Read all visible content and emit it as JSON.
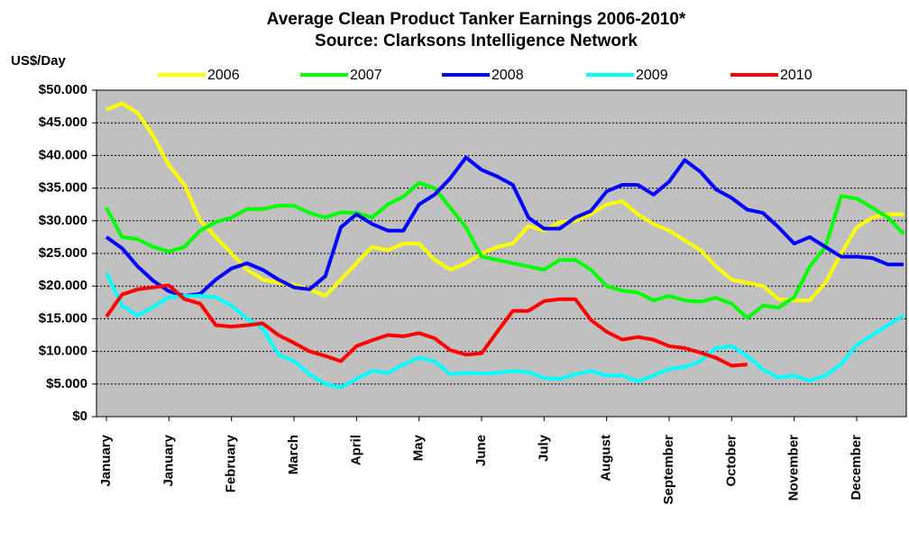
{
  "chart_data": {
    "type": "line",
    "title": "Average Clean Product Tanker Earnings 2006-2010*",
    "subtitle": "Source: Clarksons Intelligence Network",
    "ylabel": "US$/Day",
    "categories": [
      "January",
      null,
      null,
      null,
      "January",
      null,
      null,
      null,
      "February",
      null,
      null,
      null,
      "March",
      null,
      null,
      null,
      "April",
      null,
      null,
      null,
      "May",
      null,
      null,
      null,
      "June",
      null,
      null,
      null,
      "July",
      null,
      null,
      null,
      "August",
      null,
      null,
      null,
      "September",
      null,
      null,
      null,
      "October",
      null,
      null,
      null,
      "November",
      null,
      null,
      null,
      "December",
      null,
      null,
      null
    ],
    "ylim": [
      0,
      50000
    ],
    "yticks": [
      {
        "value": 0,
        "label": "$0"
      },
      {
        "value": 5000,
        "label": "$5.000"
      },
      {
        "value": 10000,
        "label": "$10.000"
      },
      {
        "value": 15000,
        "label": "$15.000"
      },
      {
        "value": 20000,
        "label": "$20.000"
      },
      {
        "value": 25000,
        "label": "$25.000"
      },
      {
        "value": 30000,
        "label": "$30.000"
      },
      {
        "value": 35000,
        "label": "$35.000"
      },
      {
        "value": 40000,
        "label": "$40.000"
      },
      {
        "value": 45000,
        "label": "$45.000"
      },
      {
        "value": 50000,
        "label": "$50.000"
      }
    ],
    "grid": true,
    "legend": "top",
    "series": [
      {
        "name": "2006",
        "color": "#ffff00",
        "values": [
          47000,
          48000,
          46500,
          43000,
          38500,
          35500,
          30000,
          27500,
          25000,
          22500,
          21000,
          20500,
          20200,
          19500,
          18500,
          21000,
          23500,
          26000,
          25500,
          26500,
          26500,
          24000,
          22500,
          23500,
          25000,
          26000,
          26500,
          29200,
          28500,
          29800,
          30000,
          31000,
          32500,
          33000,
          31000,
          29500,
          28500,
          27000,
          25500,
          23000,
          21000,
          20500,
          20000,
          18000,
          17800,
          17800,
          20500,
          25000,
          29000,
          30500,
          31000,
          31000
        ]
      },
      {
        "name": "2007",
        "color": "#00ff00",
        "values": [
          32000,
          27500,
          27200,
          26000,
          25300,
          26000,
          28500,
          29800,
          30500,
          31800,
          31800,
          32300,
          32300,
          31200,
          30500,
          31300,
          31200,
          30500,
          32500,
          33700,
          35800,
          35000,
          32000,
          29000,
          24500,
          24000,
          23500,
          23000,
          22500,
          24000,
          24000,
          22500,
          20000,
          19300,
          19000,
          17800,
          18500,
          17800,
          17600,
          18200,
          17300,
          15100,
          17000,
          16700,
          18300,
          23000,
          26000,
          33800,
          33400,
          32000,
          30500,
          28000
        ]
      },
      {
        "name": "2008",
        "color": "#0000ff",
        "values": [
          27500,
          25800,
          23000,
          20800,
          19200,
          18500,
          18800,
          21000,
          22700,
          23500,
          22500,
          21000,
          19800,
          19500,
          21500,
          29000,
          31000,
          29500,
          28500,
          28500,
          32500,
          34000,
          36500,
          39700,
          37800,
          36800,
          35500,
          30500,
          28800,
          28800,
          30500,
          31500,
          34500,
          35500,
          35500,
          34000,
          36000,
          39300,
          37500,
          34800,
          33500,
          31700,
          31200,
          29000,
          26500,
          27500,
          26000,
          24500,
          24500,
          24300,
          23300,
          23300
        ]
      },
      {
        "name": "2009",
        "color": "#00ffff",
        "values": [
          22000,
          17000,
          15500,
          16800,
          18300,
          18500,
          18500,
          18300,
          17000,
          15000,
          13500,
          9500,
          8500,
          6500,
          5000,
          4500,
          5800,
          7000,
          6700,
          8000,
          9000,
          8500,
          6500,
          6700,
          6600,
          6700,
          7000,
          6800,
          5900,
          5800,
          6500,
          7000,
          6300,
          6300,
          5400,
          6300,
          7300,
          7600,
          8500,
          10500,
          10800,
          9300,
          7200,
          6000,
          6300,
          5500,
          6300,
          8000,
          11000,
          12500,
          14000,
          15500
        ]
      },
      {
        "name": "2010",
        "color": "#ff0000",
        "values": [
          15300,
          18700,
          19500,
          19800,
          20100,
          18000,
          17300,
          14000,
          13800,
          14000,
          14300,
          12500,
          11300,
          10000,
          9300,
          8500,
          10800,
          11700,
          12500,
          12300,
          12800,
          12000,
          10200,
          9500,
          9700,
          13000,
          16200,
          16200,
          17700,
          18000,
          18000,
          14800,
          13000,
          11800,
          12200,
          11800,
          10800,
          10500,
          9800,
          9000,
          7800,
          8000,
          null,
          null,
          null,
          null,
          null,
          null,
          null,
          null,
          null,
          null
        ]
      }
    ]
  }
}
